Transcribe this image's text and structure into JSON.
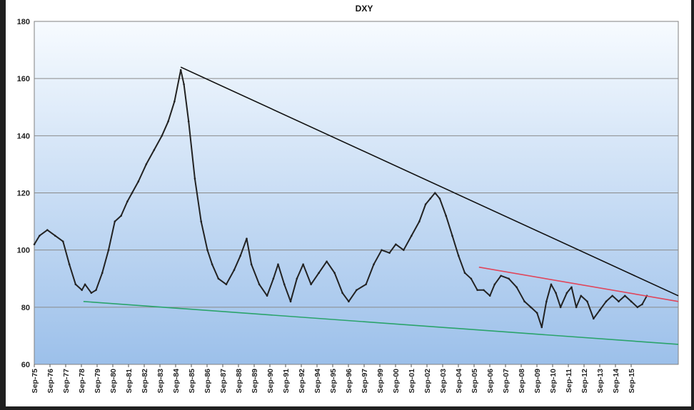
{
  "chart_data": {
    "type": "line",
    "title": "DXY",
    "xlabel": "",
    "ylabel": "",
    "ylim": [
      60,
      180
    ],
    "yticks": [
      60,
      80,
      100,
      120,
      140,
      160,
      180
    ],
    "grid": "horizontal",
    "xlim": [
      1975.667,
      2016.7
    ],
    "xtick_labels": [
      "Sep-75",
      "Sep-76",
      "Sep-77",
      "Sep-78",
      "Sep-79",
      "Sep-80",
      "Sep-81",
      "Sep-82",
      "Sep-83",
      "Sep-84",
      "Sep-85",
      "Sep-86",
      "Sep-87",
      "Sep-88",
      "Sep-89",
      "Sep-90",
      "Sep-91",
      "Sep-92",
      "Sep-94",
      "Sep-95",
      "Sep-96",
      "Sep-97",
      "Sep-99",
      "Sep-00",
      "Sep-01",
      "Sep-02",
      "Sep-03",
      "Sep-04",
      "Sep-05",
      "Sep-06",
      "Sep-07",
      "Sep-08",
      "Sep-09",
      "Sep-10",
      "Sep-11",
      "Sep-12",
      "Sep-13",
      "Sep-14",
      "Sep-15"
    ],
    "series": [
      {
        "name": "",
        "color": "#222222",
        "x": [
          1975.67,
          1976.0,
          1976.5,
          1977.0,
          1977.5,
          1977.9,
          1978.3,
          1978.7,
          1978.9,
          1979.3,
          1979.6,
          1980.0,
          1980.4,
          1980.8,
          1981.2,
          1981.6,
          1981.9,
          1982.3,
          1982.8,
          1983.3,
          1983.8,
          1984.2,
          1984.6,
          1985.0,
          1985.2,
          1985.5,
          1985.9,
          1986.3,
          1986.7,
          1987.0,
          1987.4,
          1987.9,
          1988.4,
          1988.8,
          1989.2,
          1989.5,
          1990.0,
          1990.5,
          1990.9,
          1991.2,
          1991.6,
          1992.0,
          1992.4,
          1992.8,
          1993.3,
          1993.8,
          1994.3,
          1994.8,
          1995.3,
          1995.7,
          1996.2,
          1996.8,
          1997.3,
          1997.8,
          1998.3,
          1998.7,
          1999.2,
          1999.7,
          2000.2,
          2000.6,
          2000.9,
          2001.2,
          2001.5,
          2001.9,
          2002.3,
          2002.7,
          2003.1,
          2003.5,
          2003.9,
          2004.3,
          2004.7,
          2005.0,
          2005.4,
          2005.9,
          2006.4,
          2006.9,
          2007.3,
          2007.7,
          2008.0,
          2008.3,
          2008.6,
          2008.9,
          2009.2,
          2009.6,
          2009.9,
          2010.2,
          2010.5,
          2010.9,
          2011.3,
          2011.7,
          2012.1,
          2012.5,
          2012.9,
          2013.3,
          2013.7,
          2014.1,
          2014.4,
          2014.7
        ],
        "values": [
          102,
          105,
          107,
          105,
          103,
          95,
          88,
          86,
          88,
          85,
          86,
          92,
          100,
          110,
          112,
          117,
          120,
          124,
          130,
          135,
          140,
          145,
          152,
          163,
          158,
          145,
          125,
          110,
          100,
          95,
          90,
          88,
          93,
          98,
          104,
          95,
          88,
          84,
          90,
          95,
          88,
          82,
          90,
          95,
          88,
          92,
          96,
          92,
          85,
          82,
          86,
          88,
          95,
          100,
          99,
          102,
          100,
          105,
          110,
          116,
          118,
          120,
          118,
          112,
          105,
          98,
          92,
          90,
          86,
          86,
          84,
          88,
          91,
          90,
          87,
          82,
          80,
          78,
          73,
          82,
          88,
          85,
          80,
          85,
          87,
          80,
          84,
          82,
          76,
          79,
          82,
          84,
          82,
          84,
          82,
          80,
          81,
          84
        ]
      }
    ],
    "trendlines": [
      {
        "name": "",
        "color": "#111111",
        "from": [
          1985.0,
          164
        ],
        "to": [
          2016.7,
          84
        ]
      },
      {
        "name": "",
        "color": "#e0455a",
        "from": [
          2004.0,
          94
        ],
        "to": [
          2016.7,
          82
        ]
      },
      {
        "name": "",
        "color": "#2aa36b",
        "from": [
          1978.8,
          82
        ],
        "to": [
          2016.7,
          67
        ]
      }
    ]
  }
}
